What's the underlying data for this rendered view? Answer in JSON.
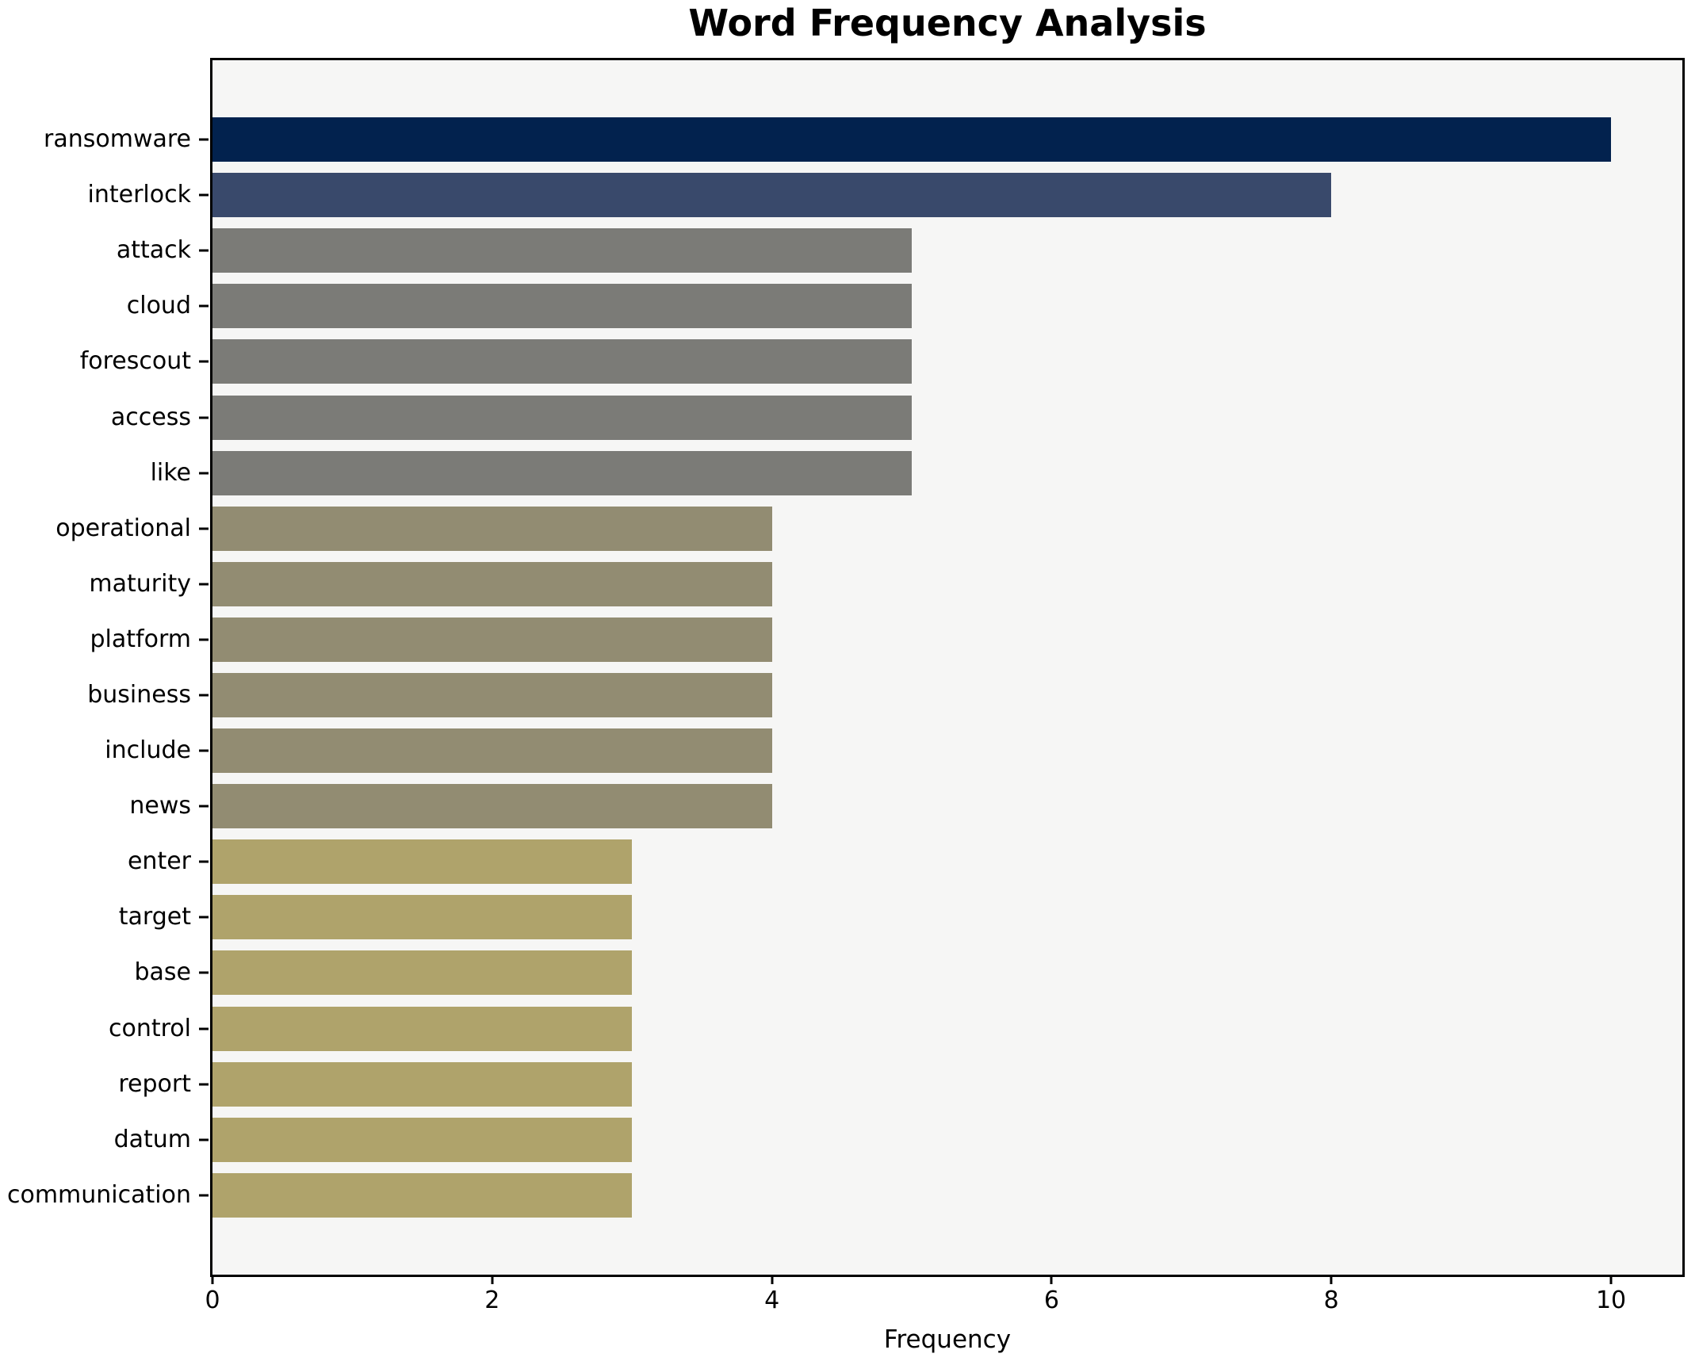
{
  "figure": {
    "background": "#ffffff",
    "plot_background": "#f6f6f5",
    "spine_color": "#000000",
    "text_color": "#000000"
  },
  "chart_data": {
    "type": "bar",
    "orientation": "horizontal",
    "title": "Word Frequency Analysis",
    "xlabel": "Frequency",
    "ylabel": "",
    "grid": false,
    "legend": "none",
    "xlim": [
      0,
      10.51
    ],
    "xticks": [
      0,
      2,
      4,
      6,
      8,
      10
    ],
    "categories": [
      "ransomware",
      "interlock",
      "attack",
      "cloud",
      "forescout",
      "access",
      "like",
      "operational",
      "maturity",
      "platform",
      "business",
      "include",
      "news",
      "enter",
      "target",
      "base",
      "control",
      "report",
      "datum",
      "communication"
    ],
    "values": [
      10,
      8,
      5,
      5,
      5,
      5,
      5,
      4,
      4,
      4,
      4,
      4,
      4,
      3,
      3,
      3,
      3,
      3,
      3,
      3
    ],
    "bar_colors": [
      "#02224e",
      "#39496b",
      "#7b7b77",
      "#7b7b77",
      "#7b7b77",
      "#7b7b77",
      "#7b7b77",
      "#928c72",
      "#928c72",
      "#928c72",
      "#928c72",
      "#928c72",
      "#928c72",
      "#afa36b",
      "#afa36b",
      "#afa36b",
      "#afa36b",
      "#afa36b",
      "#afa36b",
      "#afa36b"
    ]
  }
}
